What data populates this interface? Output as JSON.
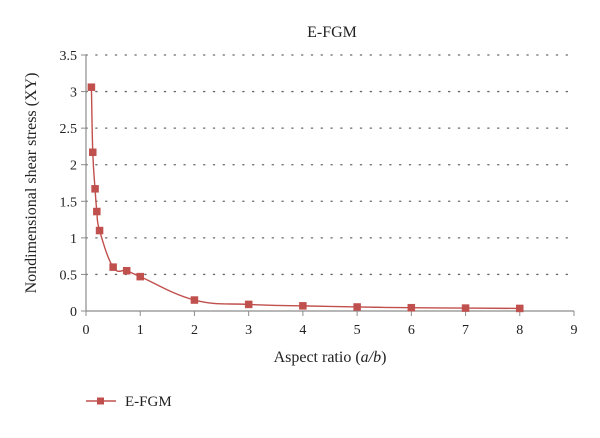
{
  "chart_data": {
    "type": "line",
    "title": "E-FGM",
    "xlabel": "Aspect ratio (a/b)",
    "ylabel": "Nondimensional shear stress (XY)",
    "xlim": [
      0,
      9
    ],
    "ylim": [
      0,
      3.5
    ],
    "x_ticks": [
      "0",
      "1",
      "2",
      "3",
      "4",
      "5",
      "6",
      "7",
      "8",
      "9"
    ],
    "y_ticks": [
      "0",
      "0.5",
      "1",
      "1.5",
      "2",
      "2.5",
      "3",
      "3.5"
    ],
    "grid": "horizontal dotted",
    "legend_position": "bottom-left",
    "series": [
      {
        "name": "E-FGM",
        "color": "#C0504D",
        "marker": "square",
        "x": [
          0.1,
          0.125,
          0.167,
          0.2,
          0.25,
          0.5,
          0.75,
          1,
          2,
          3,
          4,
          5,
          6,
          7,
          8
        ],
        "y": [
          3.06,
          2.17,
          1.67,
          1.36,
          1.1,
          0.6,
          0.55,
          0.47,
          0.15,
          0.09,
          0.07,
          0.055,
          0.045,
          0.04,
          0.035
        ]
      }
    ]
  }
}
